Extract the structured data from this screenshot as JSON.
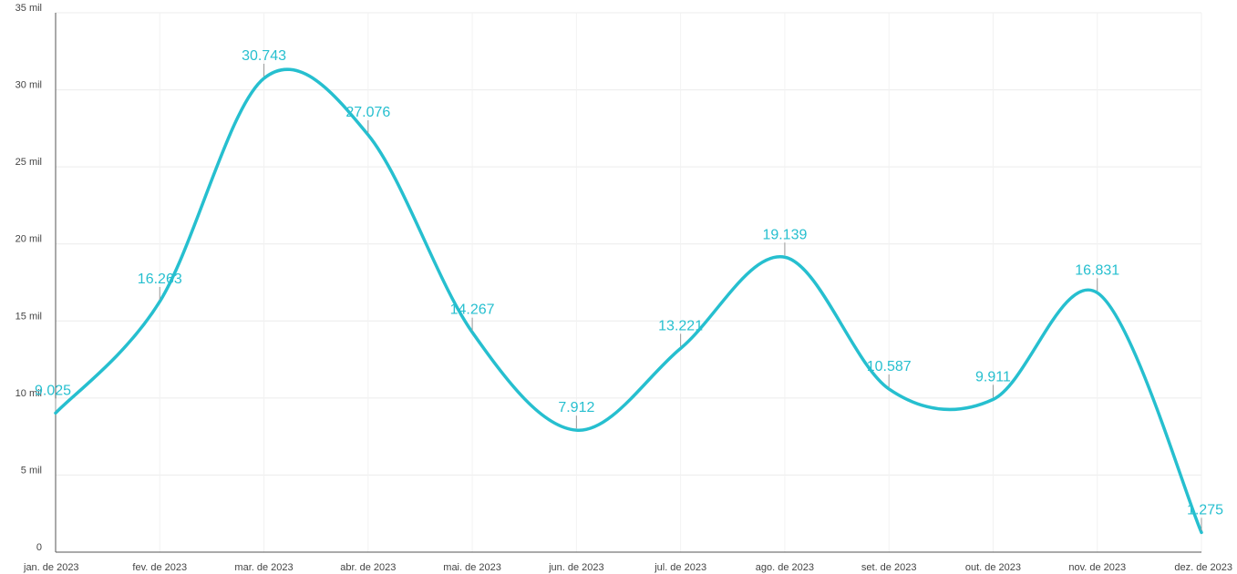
{
  "chart_data": {
    "type": "line",
    "smooth": true,
    "color": "#26bfcf",
    "categories": [
      "jan. de 2023",
      "fev. de 2023",
      "mar. de 2023",
      "abr. de 2023",
      "mai. de 2023",
      "jun. de 2023",
      "jul. de 2023",
      "ago. de 2023",
      "set. de 2023",
      "out. de 2023",
      "nov. de 2023",
      "dez. de 2023"
    ],
    "values": [
      9025,
      16263,
      30743,
      27076,
      14267,
      7912,
      13221,
      19139,
      10587,
      9911,
      16831,
      1275
    ],
    "data_labels": [
      "9.025",
      "16.263",
      "30.743",
      "27.076",
      "14.267",
      "7.912",
      "13.221",
      "19.139",
      "10.587",
      "9.911",
      "16.831",
      "1.275"
    ],
    "y_ticks": [
      0,
      5000,
      10000,
      15000,
      20000,
      25000,
      30000,
      35000
    ],
    "y_tick_labels": [
      "0",
      "5 mil",
      "10 mil",
      "15 mil",
      "20 mil",
      "25 mil",
      "30 mil",
      "35 mil"
    ],
    "ylim": [
      0,
      35000
    ],
    "grid": true,
    "legend": "none"
  }
}
